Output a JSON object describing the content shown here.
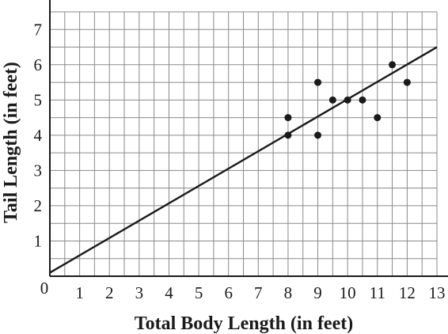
{
  "chart_data": {
    "type": "scatter",
    "title": "",
    "xlabel": "Total Body Length (in feet)",
    "ylabel": "Tail Length (in feet)",
    "xlim": [
      0,
      13
    ],
    "ylim": [
      0,
      7.5
    ],
    "x_ticks": [
      "1",
      "2",
      "3",
      "4",
      "5",
      "6",
      "7",
      "8",
      "9",
      "10",
      "11",
      "12",
      "13"
    ],
    "y_ticks": [
      "1",
      "2",
      "3",
      "4",
      "5",
      "6",
      "7"
    ],
    "origin_label": "0",
    "grid": true,
    "grid_step": 0.5,
    "points": [
      {
        "x": 8,
        "y": 4
      },
      {
        "x": 8,
        "y": 4.5
      },
      {
        "x": 9,
        "y": 4
      },
      {
        "x": 9,
        "y": 5.5
      },
      {
        "x": 9.5,
        "y": 5
      },
      {
        "x": 10,
        "y": 5
      },
      {
        "x": 10.5,
        "y": 5
      },
      {
        "x": 11,
        "y": 4.5
      },
      {
        "x": 11.5,
        "y": 6
      },
      {
        "x": 12,
        "y": 5.5
      }
    ],
    "trend_line": {
      "from": [
        0,
        0.1
      ],
      "to": [
        13,
        6.5
      ]
    },
    "colors": {
      "ink": "#1a1a1a",
      "grid": "#8a8a8a"
    }
  }
}
